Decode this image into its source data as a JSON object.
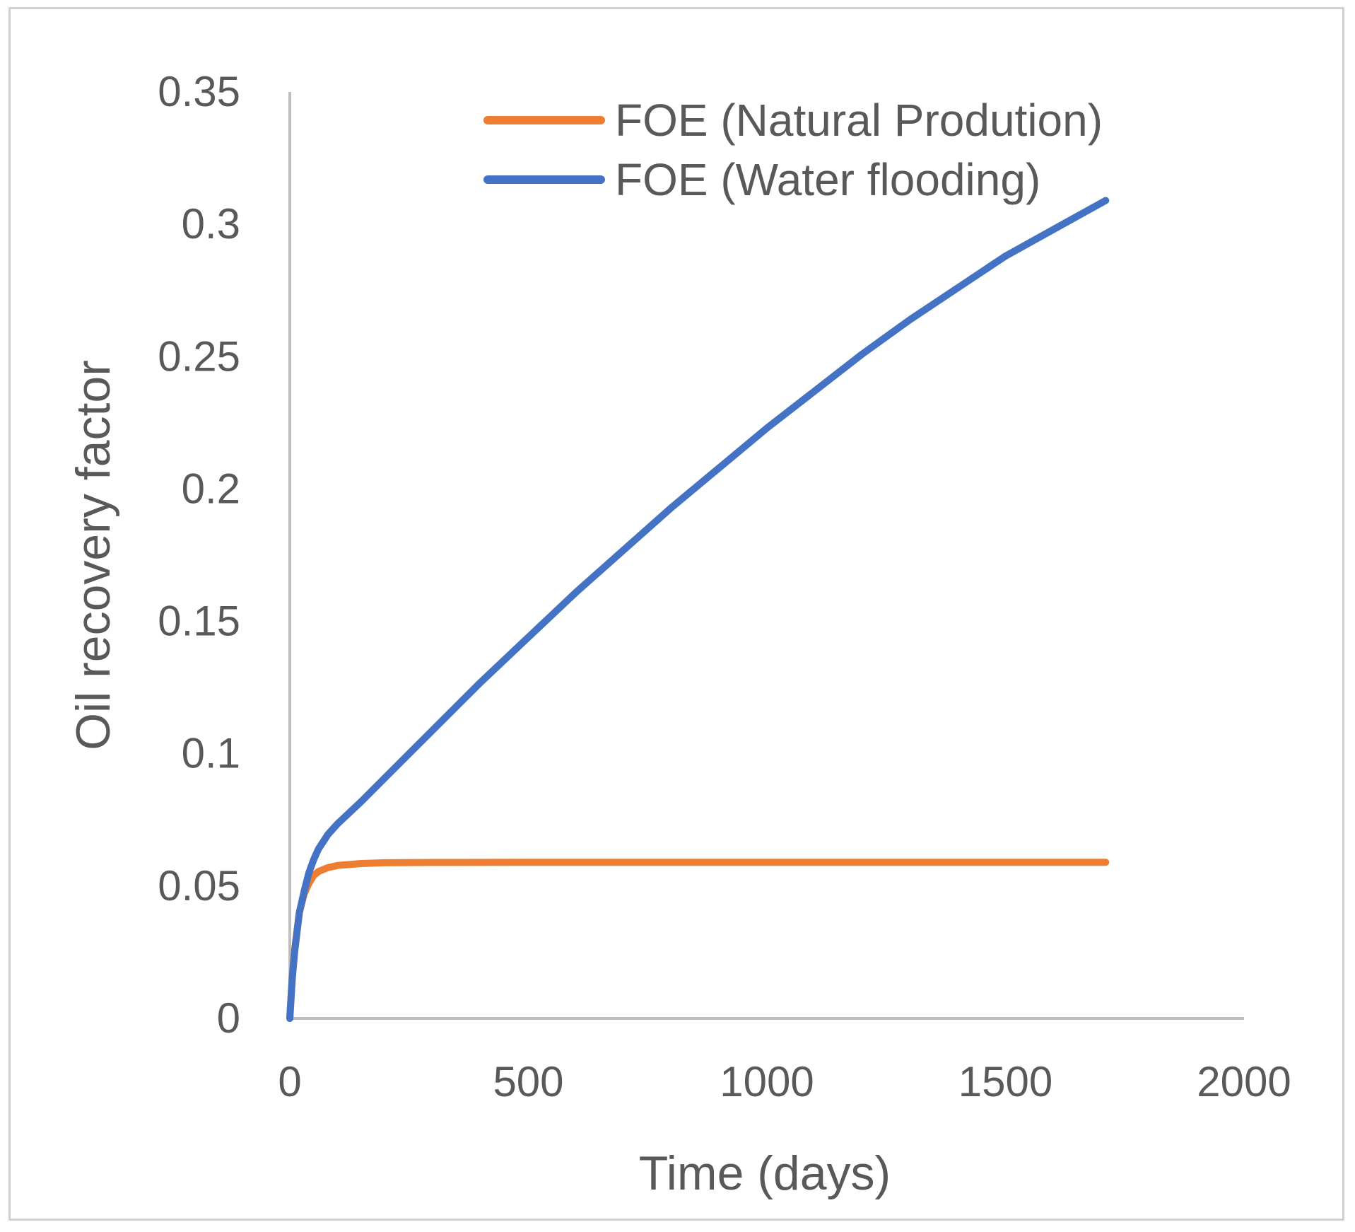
{
  "chart_data": {
    "type": "line",
    "title": "",
    "xlabel": "Time (days)",
    "ylabel": "Oil recovery factor",
    "xlim": [
      0,
      2000
    ],
    "ylim": [
      0,
      0.35
    ],
    "x_ticks": [
      "0",
      "500",
      "1000",
      "1500",
      "2000"
    ],
    "y_ticks": [
      "0",
      "0.05",
      "0.1",
      "0.15",
      "0.2",
      "0.25",
      "0.3",
      "0.35"
    ],
    "grid": false,
    "legend_position": "top-right",
    "series": [
      {
        "name": "FOE (Natural Prodution)",
        "color": "#ED7D31",
        "x": [
          0,
          5,
          10,
          20,
          30,
          40,
          50,
          60,
          80,
          100,
          150,
          200,
          300,
          500,
          1000,
          1500,
          1710
        ],
        "y": [
          0,
          0.015,
          0.026,
          0.04,
          0.047,
          0.051,
          0.054,
          0.0555,
          0.057,
          0.0578,
          0.0585,
          0.0588,
          0.0589,
          0.059,
          0.059,
          0.059,
          0.059
        ]
      },
      {
        "name": "FOE (Water flooding)",
        "color": "#4472C4",
        "x": [
          0,
          5,
          10,
          20,
          30,
          40,
          50,
          60,
          80,
          100,
          150,
          200,
          300,
          400,
          500,
          600,
          700,
          800,
          900,
          1000,
          1100,
          1200,
          1300,
          1400,
          1500,
          1600,
          1710
        ],
        "y": [
          0,
          0.015,
          0.025,
          0.04,
          0.048,
          0.055,
          0.06,
          0.064,
          0.0695,
          0.0735,
          0.082,
          0.091,
          0.109,
          0.127,
          0.144,
          0.161,
          0.177,
          0.193,
          0.208,
          0.223,
          0.237,
          0.251,
          0.264,
          0.276,
          0.288,
          0.298,
          0.309
        ]
      }
    ]
  }
}
